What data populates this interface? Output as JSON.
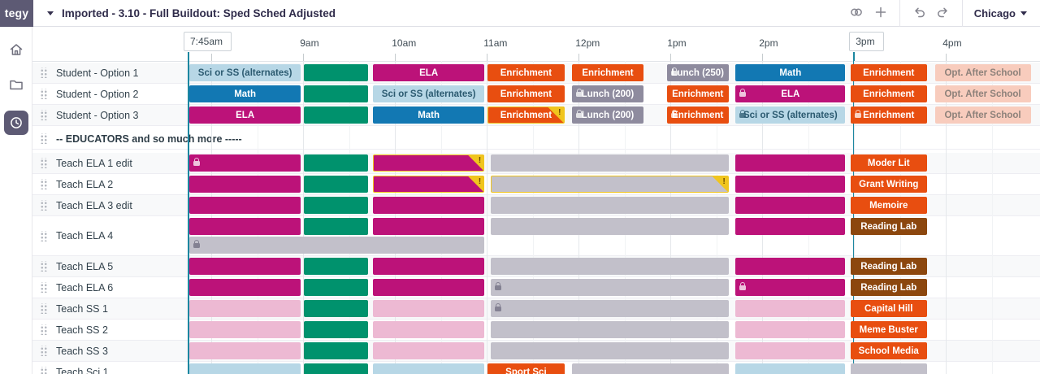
{
  "app": {
    "logo_text": "tegy",
    "title": "Imported - 3.10 - Full Buildout: Sped Sched Adjusted",
    "region": "Chicago"
  },
  "toolbar": {
    "icons": [
      "link-icon",
      "plus-icon",
      "undo-icon",
      "redo-icon"
    ]
  },
  "sidebar": {
    "items": [
      "home",
      "folder",
      "history-clock"
    ],
    "selected": "history-clock"
  },
  "time_axis": {
    "labels": [
      {
        "text": "7:45am",
        "hour": 7.75,
        "boxed": true,
        "marker": true
      },
      {
        "text": "9am",
        "hour": 9
      },
      {
        "text": "10am",
        "hour": 10
      },
      {
        "text": "11am",
        "hour": 11
      },
      {
        "text": "12pm",
        "hour": 12
      },
      {
        "text": "1pm",
        "hour": 13
      },
      {
        "text": "2pm",
        "hour": 14
      },
      {
        "text": "3pm",
        "hour": 15,
        "boxed": true,
        "marker": true
      },
      {
        "text": "4pm",
        "hour": 16
      }
    ]
  },
  "palette": {
    "sky": {
      "bg": "#b7d7e6",
      "fg": "#2b5a70"
    },
    "green": {
      "bg": "#00926d",
      "fg": "#ffffff"
    },
    "magenta": {
      "bg": "#bc1279",
      "fg": "#ffffff"
    },
    "orange": {
      "bg": "#e84e10",
      "fg": "#ffffff"
    },
    "lunch": {
      "bg": "#8e8b9e",
      "fg": "#ffffff"
    },
    "gray": {
      "bg": "#c2c0ca",
      "fg": "#6f6c80"
    },
    "blue": {
      "bg": "#1278b3",
      "fg": "#ffffff"
    },
    "pink": {
      "bg": "#edb9d3",
      "fg": "#a06287"
    },
    "salmon": {
      "bg": "#f8ccbd",
      "fg": "#8d817a"
    },
    "brown": {
      "bg": "#8c470e",
      "fg": "#ffffff"
    }
  },
  "warning": {
    "border": "#f0c51e",
    "text": "#6b4a00"
  },
  "rows": [
    {
      "label": "Student - Option 1",
      "type": "normal",
      "blocks": [
        {
          "t": "Sci or SS (alternates)",
          "c": "sky",
          "s": 7.75,
          "e": 9.0
        },
        {
          "t": "",
          "c": "green",
          "s": 9.0,
          "e": 9.73
        },
        {
          "t": "ELA",
          "c": "magenta",
          "s": 9.75,
          "e": 11.0
        },
        {
          "t": "Enrichment",
          "c": "orange",
          "s": 11.0,
          "e": 11.87
        },
        {
          "t": "Enrichment",
          "c": "orange",
          "s": 11.92,
          "e": 12.73
        },
        {
          "t": "Lunch (250)",
          "c": "lunch",
          "s": 12.95,
          "e": 13.66,
          "lock": true
        },
        {
          "t": "Math",
          "c": "blue",
          "s": 13.7,
          "e": 14.93
        },
        {
          "t": "Enrichment",
          "c": "orange",
          "s": 14.95,
          "e": 15.82
        },
        {
          "t": "Opt. After School",
          "c": "salmon",
          "s": 15.87,
          "e": 16.95
        }
      ]
    },
    {
      "label": "Student - Option 2",
      "type": "normal",
      "blocks": [
        {
          "t": "Math",
          "c": "blue",
          "s": 7.75,
          "e": 9.0
        },
        {
          "t": "",
          "c": "green",
          "s": 9.0,
          "e": 9.73
        },
        {
          "t": "Sci or SS (alternates)",
          "c": "sky",
          "s": 9.75,
          "e": 11.0
        },
        {
          "t": "Enrichment",
          "c": "orange",
          "s": 11.0,
          "e": 11.87
        },
        {
          "t": "Lunch (200)",
          "c": "lunch",
          "s": 11.92,
          "e": 12.73,
          "lock": true
        },
        {
          "t": "Enrichment",
          "c": "orange",
          "s": 12.95,
          "e": 13.66
        },
        {
          "t": "ELA",
          "c": "magenta",
          "s": 13.7,
          "e": 14.93,
          "lock": true
        },
        {
          "t": "Enrichment",
          "c": "orange",
          "s": 14.95,
          "e": 15.82
        },
        {
          "t": "Opt. After School",
          "c": "salmon",
          "s": 15.87,
          "e": 16.95
        }
      ]
    },
    {
      "label": "Student - Option 3",
      "type": "normal",
      "blocks": [
        {
          "t": "ELA",
          "c": "magenta",
          "s": 7.75,
          "e": 9.0
        },
        {
          "t": "",
          "c": "green",
          "s": 9.0,
          "e": 9.73
        },
        {
          "t": "Math",
          "c": "blue",
          "s": 9.75,
          "e": 11.0
        },
        {
          "t": "Enrichment",
          "c": "orange",
          "s": 11.0,
          "e": 11.87,
          "warn": true
        },
        {
          "t": "Lunch (200)",
          "c": "lunch",
          "s": 11.92,
          "e": 12.73,
          "lock": true
        },
        {
          "t": "Enrichment",
          "c": "orange",
          "s": 12.95,
          "e": 13.66,
          "lock": true
        },
        {
          "t": "Sci or SS (alternates)",
          "c": "sky",
          "s": 13.7,
          "e": 14.93,
          "lock": true
        },
        {
          "t": "Enrichment",
          "c": "orange",
          "s": 14.95,
          "e": 15.82,
          "lock": true
        },
        {
          "t": "Opt. After School",
          "c": "salmon",
          "s": 15.87,
          "e": 16.95
        }
      ]
    },
    {
      "label": "-- EDUCATORS and so much more -----",
      "type": "divider",
      "blocks": []
    },
    {
      "label": "Teach ELA 1 edit",
      "type": "normal",
      "blocks": [
        {
          "t": "",
          "c": "magenta",
          "s": 7.75,
          "e": 9.0,
          "lock": true
        },
        {
          "t": "",
          "c": "green",
          "s": 9.0,
          "e": 9.73
        },
        {
          "t": "",
          "c": "magenta",
          "s": 9.75,
          "e": 11.0,
          "warn": true
        },
        {
          "t": "",
          "c": "gray",
          "s": 11.03,
          "e": 13.66
        },
        {
          "t": "",
          "c": "magenta",
          "s": 13.7,
          "e": 14.93
        },
        {
          "t": "Moder Lit",
          "c": "orange",
          "s": 14.95,
          "e": 15.82
        }
      ]
    },
    {
      "label": "Teach ELA 2",
      "type": "normal",
      "blocks": [
        {
          "t": "",
          "c": "magenta",
          "s": 7.75,
          "e": 9.0
        },
        {
          "t": "",
          "c": "green",
          "s": 9.0,
          "e": 9.73
        },
        {
          "t": "",
          "c": "magenta",
          "s": 9.75,
          "e": 11.0,
          "warn": true
        },
        {
          "t": "",
          "c": "gray",
          "s": 11.03,
          "e": 13.66,
          "warn": true
        },
        {
          "t": "",
          "c": "magenta",
          "s": 13.7,
          "e": 14.93
        },
        {
          "t": "Grant Writing",
          "c": "orange",
          "s": 14.95,
          "e": 15.82
        }
      ]
    },
    {
      "label": "Teach ELA 3 edit",
      "type": "normal",
      "blocks": [
        {
          "t": "",
          "c": "magenta",
          "s": 7.75,
          "e": 9.0
        },
        {
          "t": "",
          "c": "green",
          "s": 9.0,
          "e": 9.73
        },
        {
          "t": "",
          "c": "magenta",
          "s": 9.75,
          "e": 11.0
        },
        {
          "t": "",
          "c": "gray",
          "s": 11.03,
          "e": 13.66
        },
        {
          "t": "",
          "c": "magenta",
          "s": 13.7,
          "e": 14.93
        },
        {
          "t": "Memoire",
          "c": "orange",
          "s": 14.95,
          "e": 15.82
        }
      ]
    },
    {
      "label": "Teach ELA 4",
      "type": "tall",
      "blocks": [
        {
          "t": "",
          "c": "magenta",
          "s": 7.75,
          "e": 9.0
        },
        {
          "t": "",
          "c": "green",
          "s": 9.0,
          "e": 9.73
        },
        {
          "t": "",
          "c": "magenta",
          "s": 9.75,
          "e": 11.0
        },
        {
          "t": "",
          "c": "gray",
          "s": 11.03,
          "e": 13.66
        },
        {
          "t": "",
          "c": "magenta",
          "s": 13.7,
          "e": 14.93
        },
        {
          "t": "Reading Lab",
          "c": "brown",
          "s": 14.95,
          "e": 15.82
        }
      ],
      "blocks2": [
        {
          "t": "",
          "c": "gray",
          "s": 7.75,
          "e": 11.0,
          "lock": true
        }
      ]
    },
    {
      "label": "Teach ELA 5",
      "type": "normal",
      "blocks": [
        {
          "t": "",
          "c": "magenta",
          "s": 7.75,
          "e": 9.0
        },
        {
          "t": "",
          "c": "green",
          "s": 9.0,
          "e": 9.73
        },
        {
          "t": "",
          "c": "magenta",
          "s": 9.75,
          "e": 11.0
        },
        {
          "t": "",
          "c": "gray",
          "s": 11.03,
          "e": 13.66
        },
        {
          "t": "",
          "c": "magenta",
          "s": 13.7,
          "e": 14.93
        },
        {
          "t": "Reading Lab",
          "c": "brown",
          "s": 14.95,
          "e": 15.82
        }
      ]
    },
    {
      "label": "Teach ELA 6",
      "type": "normal",
      "blocks": [
        {
          "t": "",
          "c": "magenta",
          "s": 7.75,
          "e": 9.0
        },
        {
          "t": "",
          "c": "green",
          "s": 9.0,
          "e": 9.73
        },
        {
          "t": "",
          "c": "magenta",
          "s": 9.75,
          "e": 11.0
        },
        {
          "t": "",
          "c": "gray",
          "s": 11.03,
          "e": 13.66,
          "lock": true
        },
        {
          "t": "",
          "c": "magenta",
          "s": 13.7,
          "e": 14.93,
          "lock": true
        },
        {
          "t": "Reading Lab",
          "c": "brown",
          "s": 14.95,
          "e": 15.82
        }
      ]
    },
    {
      "label": "Teach SS 1",
      "type": "normal",
      "blocks": [
        {
          "t": "",
          "c": "pink",
          "s": 7.75,
          "e": 9.0
        },
        {
          "t": "",
          "c": "green",
          "s": 9.0,
          "e": 9.73
        },
        {
          "t": "",
          "c": "pink",
          "s": 9.75,
          "e": 11.0
        },
        {
          "t": "",
          "c": "gray",
          "s": 11.03,
          "e": 13.66,
          "lock": true
        },
        {
          "t": "",
          "c": "pink",
          "s": 13.7,
          "e": 14.93
        },
        {
          "t": "Capital Hill",
          "c": "orange",
          "s": 14.95,
          "e": 15.82
        }
      ]
    },
    {
      "label": "Teach SS 2",
      "type": "normal",
      "blocks": [
        {
          "t": "",
          "c": "pink",
          "s": 7.75,
          "e": 9.0
        },
        {
          "t": "",
          "c": "green",
          "s": 9.0,
          "e": 9.73
        },
        {
          "t": "",
          "c": "pink",
          "s": 9.75,
          "e": 11.0
        },
        {
          "t": "",
          "c": "gray",
          "s": 11.03,
          "e": 13.66
        },
        {
          "t": "",
          "c": "pink",
          "s": 13.7,
          "e": 14.93
        },
        {
          "t": "Meme Buster",
          "c": "orange",
          "s": 14.95,
          "e": 15.82
        }
      ]
    },
    {
      "label": "Teach SS 3",
      "type": "normal",
      "blocks": [
        {
          "t": "",
          "c": "pink",
          "s": 7.75,
          "e": 9.0
        },
        {
          "t": "",
          "c": "green",
          "s": 9.0,
          "e": 9.73
        },
        {
          "t": "",
          "c": "pink",
          "s": 9.75,
          "e": 11.0
        },
        {
          "t": "",
          "c": "gray",
          "s": 11.03,
          "e": 13.66
        },
        {
          "t": "",
          "c": "pink",
          "s": 13.7,
          "e": 14.93
        },
        {
          "t": "School Media",
          "c": "orange",
          "s": 14.95,
          "e": 15.82
        }
      ]
    },
    {
      "label": "Teach Sci 1",
      "type": "normal",
      "blocks": [
        {
          "t": "",
          "c": "sky",
          "s": 7.75,
          "e": 9.0
        },
        {
          "t": "",
          "c": "green",
          "s": 9.0,
          "e": 9.73
        },
        {
          "t": "",
          "c": "sky",
          "s": 9.75,
          "e": 11.0
        },
        {
          "t": "Sport Sci",
          "c": "orange",
          "s": 11.0,
          "e": 11.87
        },
        {
          "t": "",
          "c": "gray",
          "s": 11.92,
          "e": 13.66
        },
        {
          "t": "",
          "c": "sky",
          "s": 13.7,
          "e": 14.93
        },
        {
          "t": "",
          "c": "gray",
          "s": 14.95,
          "e": 15.82
        }
      ]
    }
  ]
}
